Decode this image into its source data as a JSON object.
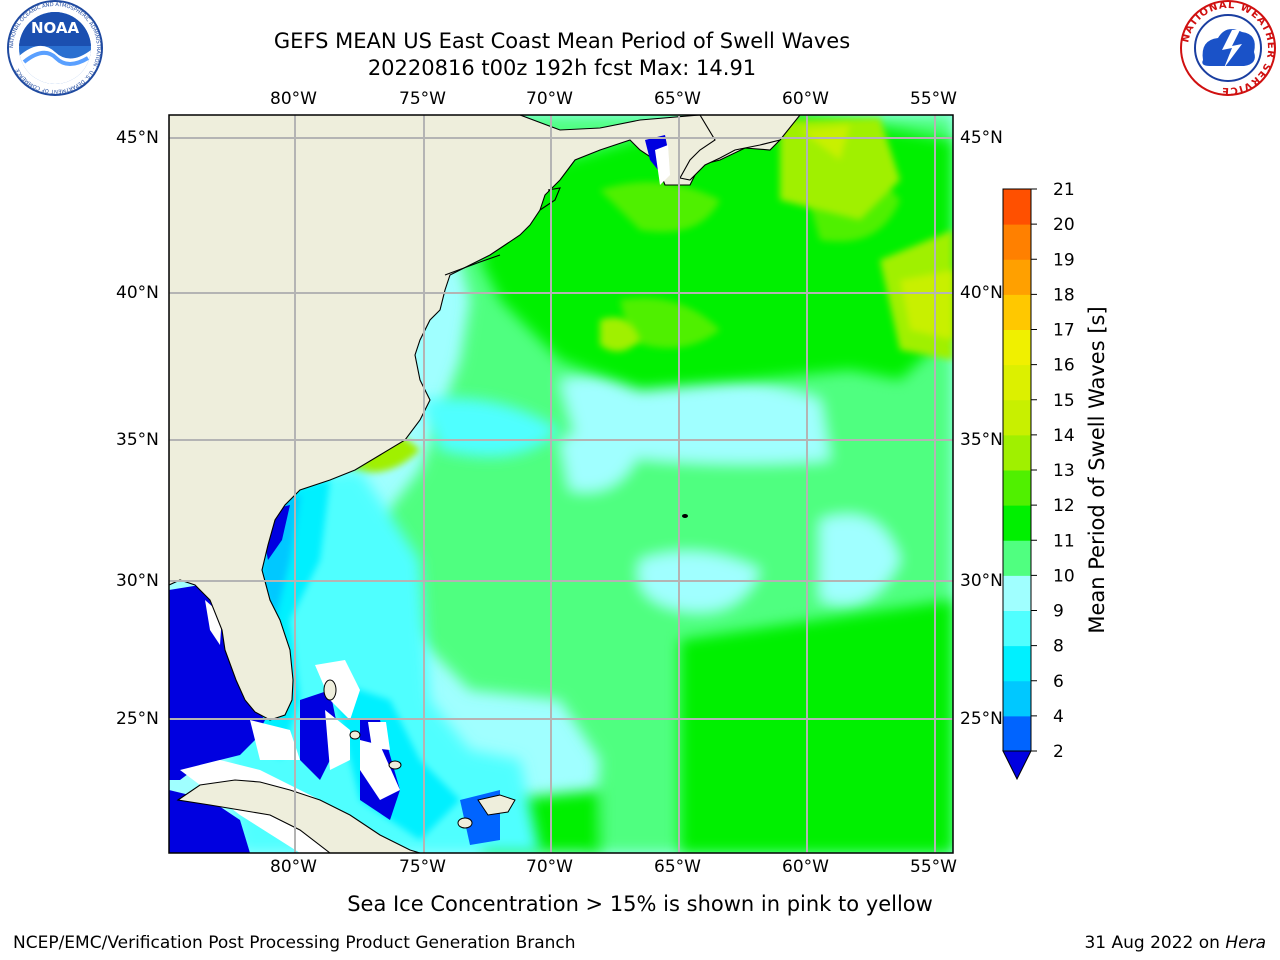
{
  "header": {
    "title_line1": "GEFS MEAN US East Coast Mean Period of Swell Waves",
    "title_line2": "20220816 t00z 192h fcst   Max: 14.91"
  },
  "logos": {
    "left": {
      "name": "NOAA",
      "text": "NOAA",
      "ring_text": "NATIONAL OCEANIC AND ATMOSPHERIC ADMINISTRATION · U.S. DEPARTMENT OF COMMERCE"
    },
    "right": {
      "name": "National Weather Service",
      "ring_text": "NATIONAL WEATHER SERVICE"
    }
  },
  "map": {
    "lon_labels": [
      "80°W",
      "75°W",
      "70°W",
      "65°W",
      "60°W",
      "55°W"
    ],
    "lat_labels": [
      "45°N",
      "40°N",
      "35°N",
      "30°N",
      "25°N"
    ],
    "land_color": "#eeeedc",
    "grid_color": "#b4b4b4"
  },
  "colorbar": {
    "label": "Mean Period of Swell Waves [s]",
    "ticks": [
      "2",
      "4",
      "6",
      "8",
      "9",
      "10",
      "11",
      "12",
      "13",
      "14",
      "15",
      "16",
      "17",
      "18",
      "19",
      "20",
      "21"
    ],
    "colors": [
      "#0064ff",
      "#00c8ff",
      "#00f0ff",
      "#50ffff",
      "#a0ffff",
      "#50ff80",
      "#00f000",
      "#50f000",
      "#a0f000",
      "#c8f000",
      "#dcf000",
      "#f0f000",
      "#ffc800",
      "#ffa000",
      "#ff8000",
      "#ff5000",
      "#ff2800",
      "#ff0000"
    ],
    "extend_low_color": "#0000e0"
  },
  "footer": {
    "ice_note": "Sea Ice Concentration > 15% is shown in pink to yellow",
    "credit": "NCEP/EMC/Verification Post Processing Product Generation Branch",
    "date_text": "31 Aug 2022 on ",
    "machine": "Hera"
  }
}
